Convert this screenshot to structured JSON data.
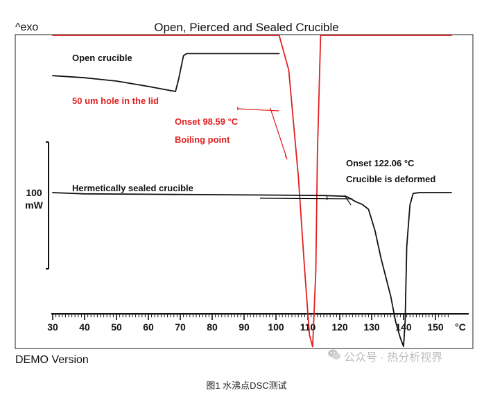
{
  "header": {
    "exo_label": "^exo",
    "title": "Open, Pierced and Sealed Crucible"
  },
  "footer": {
    "demo": "DEMO Version",
    "caption": "图1 水沸点DSC测试"
  },
  "watermark": {
    "text": "公众号 · 热分析视界",
    "icon": "wechat-icon"
  },
  "colors": {
    "black_series": "#111111",
    "red_series": "#e02020",
    "frame": "#222222"
  },
  "chart_data": {
    "type": "line",
    "title": "Open, Pierced and Sealed Crucible",
    "xlabel": "°C",
    "xlim": [
      30,
      155
    ],
    "xticks": [
      30,
      40,
      50,
      60,
      70,
      80,
      90,
      100,
      110,
      120,
      130,
      140,
      150
    ],
    "y_scale_bar": {
      "line1": "100",
      "line2": "mW"
    },
    "grid": false,
    "series": [
      {
        "label": "Open crucible",
        "color": "#111111",
        "points": [
          [
            30,
            0.38
          ],
          [
            40,
            0.33
          ],
          [
            50,
            0.25
          ],
          [
            60,
            0.12
          ],
          [
            67,
            0.02
          ],
          [
            68.5,
            0.0
          ],
          [
            69.5,
            0.3
          ],
          [
            71,
            0.86
          ],
          [
            72,
            0.91
          ],
          [
            80,
            0.91
          ],
          [
            101,
            0.91
          ]
        ]
      },
      {
        "label": "50 um hole in the lid",
        "color": "#e02020",
        "points": [
          [
            30,
            1.0
          ],
          [
            50,
            1.0
          ],
          [
            70,
            0.96
          ],
          [
            90,
            0.94
          ],
          [
            96,
            0.93
          ],
          [
            99,
            0.91
          ],
          [
            101,
            0.8
          ],
          [
            104,
            0.3
          ],
          [
            107,
            -0.6
          ],
          [
            109,
            -1.4
          ],
          [
            110.5,
            -1.95
          ],
          [
            111.5,
            -2.05
          ],
          [
            112.5,
            -1.4
          ],
          [
            113,
            -0.4
          ],
          [
            114,
            0.7
          ],
          [
            115,
            0.98
          ],
          [
            118,
            1.0
          ],
          [
            155,
            1.0
          ]
        ]
      },
      {
        "label": "Hermetically sealed crucible",
        "color": "#111111",
        "points": [
          [
            30,
            0.1
          ],
          [
            40,
            0.07
          ],
          [
            60,
            0.06
          ],
          [
            80,
            0.05
          ],
          [
            100,
            0.04
          ],
          [
            115,
            0.03
          ],
          [
            122,
            0.01
          ],
          [
            123.5,
            -0.05
          ],
          [
            125,
            -0.12
          ],
          [
            127,
            -0.18
          ],
          [
            129,
            -0.3
          ],
          [
            131,
            -0.8
          ],
          [
            133,
            -1.5
          ],
          [
            136,
            -2.4
          ],
          [
            137.5,
            -3.0
          ],
          [
            139,
            -3.4
          ],
          [
            140,
            -3.6
          ],
          [
            140.5,
            -3.0
          ],
          [
            141,
            -1.2
          ],
          [
            142,
            -0.2
          ],
          [
            143,
            0.08
          ],
          [
            145,
            0.1
          ],
          [
            155,
            0.1
          ]
        ]
      }
    ],
    "annotations": [
      {
        "text": "Onset 98.59 °C",
        "color": "#e02020"
      },
      {
        "text": "Boiling point",
        "color": "#e02020"
      },
      {
        "text": "Onset 122.06 °C",
        "color": "#111111"
      },
      {
        "text": "Crucible is deformed",
        "color": "#111111"
      }
    ]
  }
}
